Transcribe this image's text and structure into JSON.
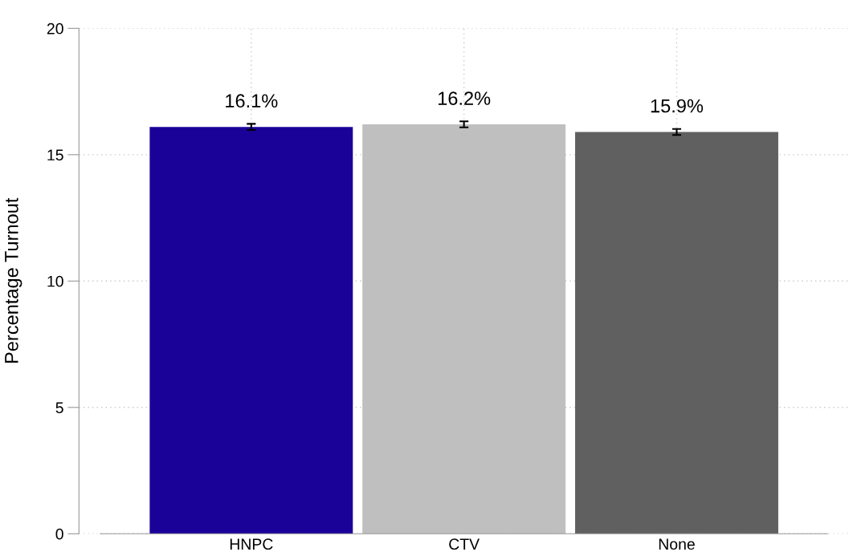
{
  "chart_data": {
    "type": "bar",
    "ylabel": "Percentage Turnout",
    "categories": [
      "HNPC",
      "CTV",
      "None"
    ],
    "values": [
      16.1,
      16.2,
      15.9
    ],
    "colors": [
      "#1a0299",
      "#bfbfbf",
      "#606060"
    ],
    "errors": [
      0.12,
      0.12,
      0.12
    ],
    "value_labels": [
      "16.1%",
      "16.2%",
      "15.9%"
    ],
    "ylim": [
      0,
      20
    ],
    "yticks": [
      0,
      5,
      10,
      15,
      20
    ],
    "grid": true
  }
}
